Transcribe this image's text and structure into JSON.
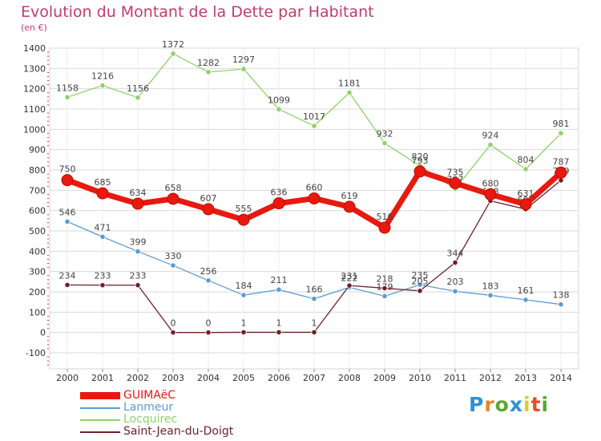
{
  "title": "Evolution du Montant de la Dette par Habitant",
  "subtitle": "(en €)",
  "logo": {
    "text": "Proxiti",
    "colors": [
      "#2e8fd8",
      "#e8832a",
      "#5aa832",
      "#2e8fd8",
      "#e8c82a",
      "#e84a2a",
      "#5aa832"
    ]
  },
  "chart_data": {
    "type": "line",
    "x": [
      "2000",
      "2001",
      "2002",
      "2003",
      "2004",
      "2005",
      "2006",
      "2007",
      "2008",
      "2009",
      "2010",
      "2011",
      "2012",
      "2013",
      "2014"
    ],
    "ylim": [
      -100,
      1400
    ],
    "yticks": [
      -100,
      0,
      100,
      200,
      300,
      400,
      500,
      600,
      700,
      800,
      900,
      1000,
      1100,
      1200,
      1300,
      1400
    ],
    "grid": true,
    "legend_position": "bottom-left",
    "series": [
      {
        "name": "Locquirec",
        "color": "#8fd16a",
        "values": [
          1158,
          1216,
          1156,
          1372,
          1282,
          1297,
          1099,
          1017,
          1181,
          932,
          820,
          707,
          924,
          804,
          981
        ]
      },
      {
        "name": "Lanmeur",
        "color": "#5b9bd5",
        "values": [
          546,
          471,
          399,
          330,
          256,
          184,
          211,
          166,
          222,
          179,
          235,
          203,
          183,
          161,
          138
        ]
      },
      {
        "name": "Saint-Jean-du-Doigt",
        "color": "#6e1f28",
        "values": [
          234,
          233,
          233,
          0,
          0,
          1,
          1,
          1,
          231,
          218,
          205,
          344,
          648,
          607,
          749
        ]
      },
      {
        "name": "GUIMAëC",
        "color": "#e8190f",
        "values": [
          750,
          685,
          634,
          658,
          607,
          555,
          636,
          660,
          619,
          516,
          793,
          735,
          680,
          631,
          787
        ]
      }
    ]
  }
}
